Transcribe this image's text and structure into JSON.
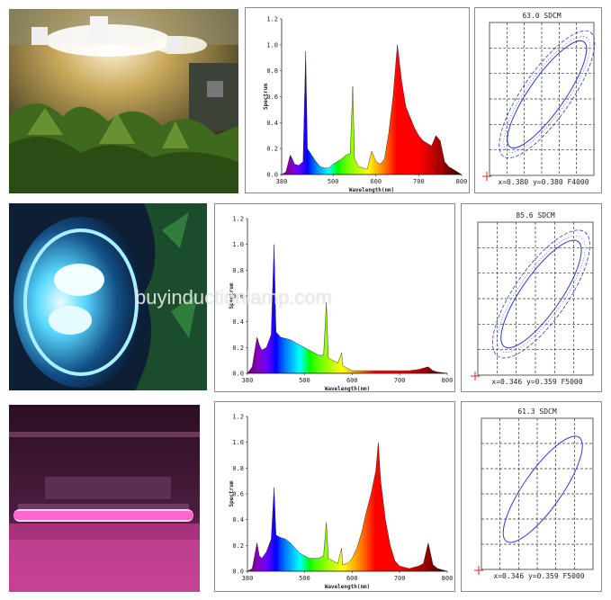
{
  "watermark": "buyinductionlamp.com",
  "rows": [
    {
      "photo_desc_icon": "grow-room-photo",
      "spectrum": {
        "y_label": "Spectrum",
        "x_label": "Wavelength(nm)",
        "y_ticks": [
          "0.0",
          "0.2",
          "0.4",
          "0.6",
          "0.8",
          "1.0",
          "1.2"
        ],
        "x_ticks": [
          "380",
          "500",
          "600",
          "700",
          "800"
        ]
      },
      "ellipse": {
        "title": "63.0 SDCM",
        "caption": "x=0.380 y=0.380 F4000"
      }
    },
    {
      "photo_desc_icon": "blue-lamp-photo",
      "spectrum": {
        "y_label": "Spectrum",
        "x_label": "Wavelength(nm)",
        "y_ticks": [
          "0.0",
          "0.2",
          "0.4",
          "0.6",
          "0.8",
          "1.0",
          "1.2"
        ],
        "x_ticks": [
          "380",
          "500",
          "600",
          "700",
          "800"
        ]
      },
      "ellipse": {
        "title": "85.6 SDCM",
        "caption": "x=0.346 y=0.359 F5000"
      }
    },
    {
      "photo_desc_icon": "pink-tube-photo",
      "spectrum": {
        "y_label": "Spectrum",
        "x_label": "Wavelength(nm)",
        "y_ticks": [
          "0.0",
          "0.2",
          "0.4",
          "0.6",
          "0.8",
          "1.0",
          "1.2"
        ],
        "x_ticks": [
          "380",
          "500",
          "600",
          "700",
          "800"
        ]
      },
      "ellipse": {
        "title": "61.3 SDCM",
        "caption": "x=0.346 y=0.359 F5000"
      }
    }
  ],
  "chart_data": [
    {
      "type": "area",
      "xlabel": "Wavelength(nm)",
      "ylabel": "Spectrum",
      "xlim": [
        380,
        800
      ],
      "ylim": [
        0,
        1.2
      ],
      "x": [
        380,
        390,
        400,
        405,
        410,
        420,
        430,
        436,
        440,
        450,
        460,
        470,
        480,
        490,
        500,
        510,
        520,
        530,
        540,
        546,
        550,
        560,
        570,
        580,
        590,
        600,
        610,
        620,
        630,
        640,
        650,
        660,
        670,
        680,
        690,
        700,
        710,
        720,
        730,
        740,
        750,
        760,
        770,
        780,
        790,
        800
      ],
      "values": [
        0.0,
        0.02,
        0.15,
        0.12,
        0.08,
        0.07,
        0.1,
        0.95,
        0.2,
        0.15,
        0.1,
        0.06,
        0.05,
        0.05,
        0.08,
        0.1,
        0.12,
        0.15,
        0.16,
        0.68,
        0.12,
        0.06,
        0.05,
        0.04,
        0.18,
        0.1,
        0.08,
        0.12,
        0.32,
        0.6,
        1.0,
        0.72,
        0.52,
        0.44,
        0.36,
        0.3,
        0.26,
        0.24,
        0.22,
        0.3,
        0.26,
        0.1,
        0.06,
        0.04,
        0.02,
        0.0
      ]
    },
    {
      "type": "area",
      "xlabel": "Wavelength(nm)",
      "ylabel": "Spectrum",
      "xlim": [
        380,
        800
      ],
      "ylim": [
        0,
        1.2
      ],
      "x": [
        380,
        390,
        400,
        405,
        410,
        420,
        430,
        436,
        440,
        450,
        460,
        470,
        480,
        490,
        500,
        510,
        520,
        530,
        540,
        546,
        550,
        560,
        570,
        578,
        580,
        590,
        600,
        610,
        620,
        640,
        660,
        680,
        700,
        720,
        740,
        760,
        770,
        780,
        800
      ],
      "values": [
        0.0,
        0.05,
        0.28,
        0.22,
        0.18,
        0.2,
        0.3,
        1.0,
        0.32,
        0.28,
        0.27,
        0.26,
        0.24,
        0.22,
        0.2,
        0.18,
        0.16,
        0.14,
        0.14,
        0.55,
        0.12,
        0.1,
        0.08,
        0.16,
        0.06,
        0.04,
        0.02,
        0.02,
        0.02,
        0.02,
        0.02,
        0.02,
        0.02,
        0.02,
        0.03,
        0.05,
        0.02,
        0.01,
        0.0
      ]
    },
    {
      "type": "area",
      "xlabel": "Wavelength(nm)",
      "ylabel": "Spectrum",
      "xlim": [
        380,
        800
      ],
      "ylim": [
        0,
        1.2
      ],
      "x": [
        380,
        390,
        400,
        405,
        410,
        420,
        430,
        436,
        440,
        450,
        460,
        470,
        480,
        490,
        500,
        510,
        520,
        530,
        540,
        546,
        550,
        560,
        570,
        578,
        580,
        590,
        600,
        610,
        620,
        630,
        640,
        650,
        655,
        660,
        670,
        680,
        690,
        700,
        720,
        740,
        750,
        760,
        770,
        780,
        800
      ],
      "values": [
        0.0,
        0.02,
        0.22,
        0.12,
        0.1,
        0.15,
        0.25,
        0.65,
        0.28,
        0.26,
        0.25,
        0.22,
        0.18,
        0.14,
        0.12,
        0.1,
        0.1,
        0.1,
        0.12,
        0.38,
        0.1,
        0.08,
        0.06,
        0.18,
        0.05,
        0.06,
        0.1,
        0.18,
        0.3,
        0.46,
        0.6,
        0.78,
        1.0,
        0.7,
        0.4,
        0.2,
        0.08,
        0.04,
        0.02,
        0.04,
        0.06,
        0.22,
        0.05,
        0.02,
        0.0
      ]
    }
  ]
}
